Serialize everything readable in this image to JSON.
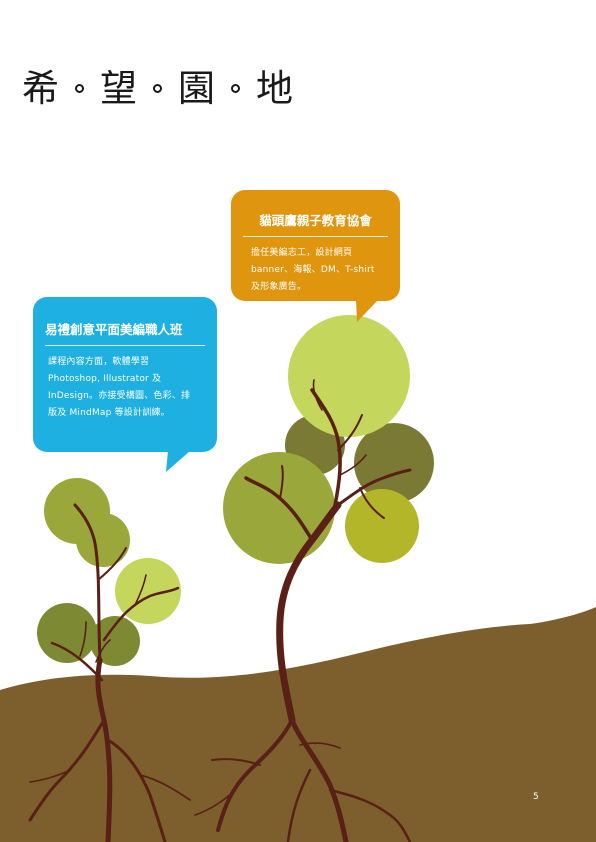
{
  "title": {
    "chars": [
      "希",
      "望",
      "園",
      "地"
    ]
  },
  "bubbles": {
    "orange": {
      "title": "貓頭鷹親子教育協會",
      "text": "擔任美編志工，設計網頁\nbanner、海報、DM、T-shirt\n及形象廣告。",
      "color": "#e0950e"
    },
    "blue": {
      "title": "易禮創意平面美編職人班",
      "text": "課程內容方面，軟體學習\nPhotoshop, Illustrator 及\nInDesign。亦接受構圖、色彩、排\n版及 MindMap 等設計訓練。",
      "color": "#1fb0e2"
    }
  },
  "page_number": "5",
  "colors": {
    "ground": "#7d5f2d",
    "trunk": "#5a1f16",
    "leaf_light": "#c4d65c",
    "leaf_mid": "#9aa73a",
    "leaf_dark": "#7a7a35"
  }
}
